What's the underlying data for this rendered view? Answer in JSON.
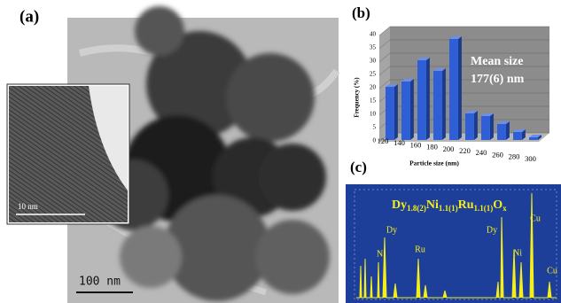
{
  "panel_labels": [
    "(a)",
    "(b)",
    "(c)"
  ],
  "tem": {
    "scale_bar": "100 nm",
    "inset_scale_bar": "10 nm"
  },
  "chart_data": {
    "type": "bar",
    "categories": [
      "120",
      "140",
      "160",
      "180",
      "200",
      "220",
      "240",
      "260",
      "280",
      "300"
    ],
    "values": [
      20,
      22,
      30,
      26,
      38,
      10,
      9,
      6,
      3,
      1
    ],
    "color": "#2f5fd6",
    "ylim": [
      0,
      40
    ],
    "yticks": [
      0,
      5,
      10,
      15,
      20,
      25,
      30,
      35,
      40
    ],
    "grid": true,
    "y_label": "Frequency (%)",
    "x_label": "Particle size (nm)",
    "annotation": [
      "Mean size",
      "177(6) nm"
    ]
  },
  "spectrum": {
    "formula": [
      {
        "symbol": "Dy",
        "subscript": "1.8(2)"
      },
      {
        "symbol": "Ni",
        "subscript": "1.1(1)"
      },
      {
        "symbol": "Ru",
        "subscript": "1.1(1)"
      },
      {
        "symbol": "O",
        "subscript": "x"
      }
    ],
    "peaks": [
      "Dy",
      "Ni",
      "Ru",
      "Dy",
      "Ni",
      "Cu",
      "Cu"
    ]
  }
}
